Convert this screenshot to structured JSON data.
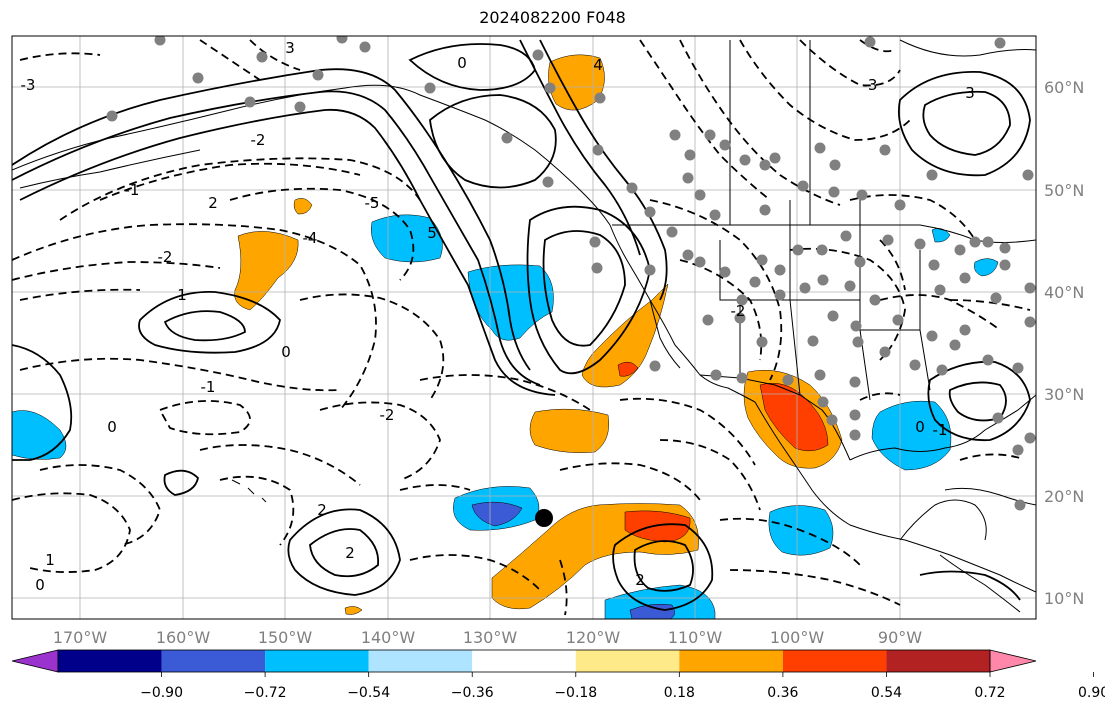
{
  "title": "2024082200 F048",
  "lon_labels": [
    "170°W",
    "160°W",
    "150°W",
    "140°W",
    "130°W",
    "120°W",
    "110°W",
    "100°W",
    "90°W"
  ],
  "lat_labels": [
    "60°N",
    "50°N",
    "40°N",
    "30°N",
    "20°N",
    "10°N"
  ],
  "colorbar": {
    "ticks": [
      "−0.90",
      "−0.72",
      "−0.54",
      "−0.36",
      "−0.18",
      "0.18",
      "0.36",
      "0.54",
      "0.72",
      "0.90"
    ],
    "colors": [
      "#9a32cd",
      "#00008b",
      "#3b5bd6",
      "#00bfff",
      "#aee4ff",
      "#ffffff",
      "#ffea8a",
      "#ffa500",
      "#ff3f00",
      "#b22222",
      "#ff88aa"
    ]
  },
  "contour_labels": [
    "-3",
    "3",
    "4",
    "-4",
    "0",
    "-2",
    "-1",
    "2",
    "1",
    "-5",
    "5",
    "3",
    "-3",
    "0",
    "-1",
    "2",
    "-2",
    "0",
    "1",
    "-2",
    "0",
    "-1",
    "-2",
    "2",
    "2",
    "0"
  ]
}
